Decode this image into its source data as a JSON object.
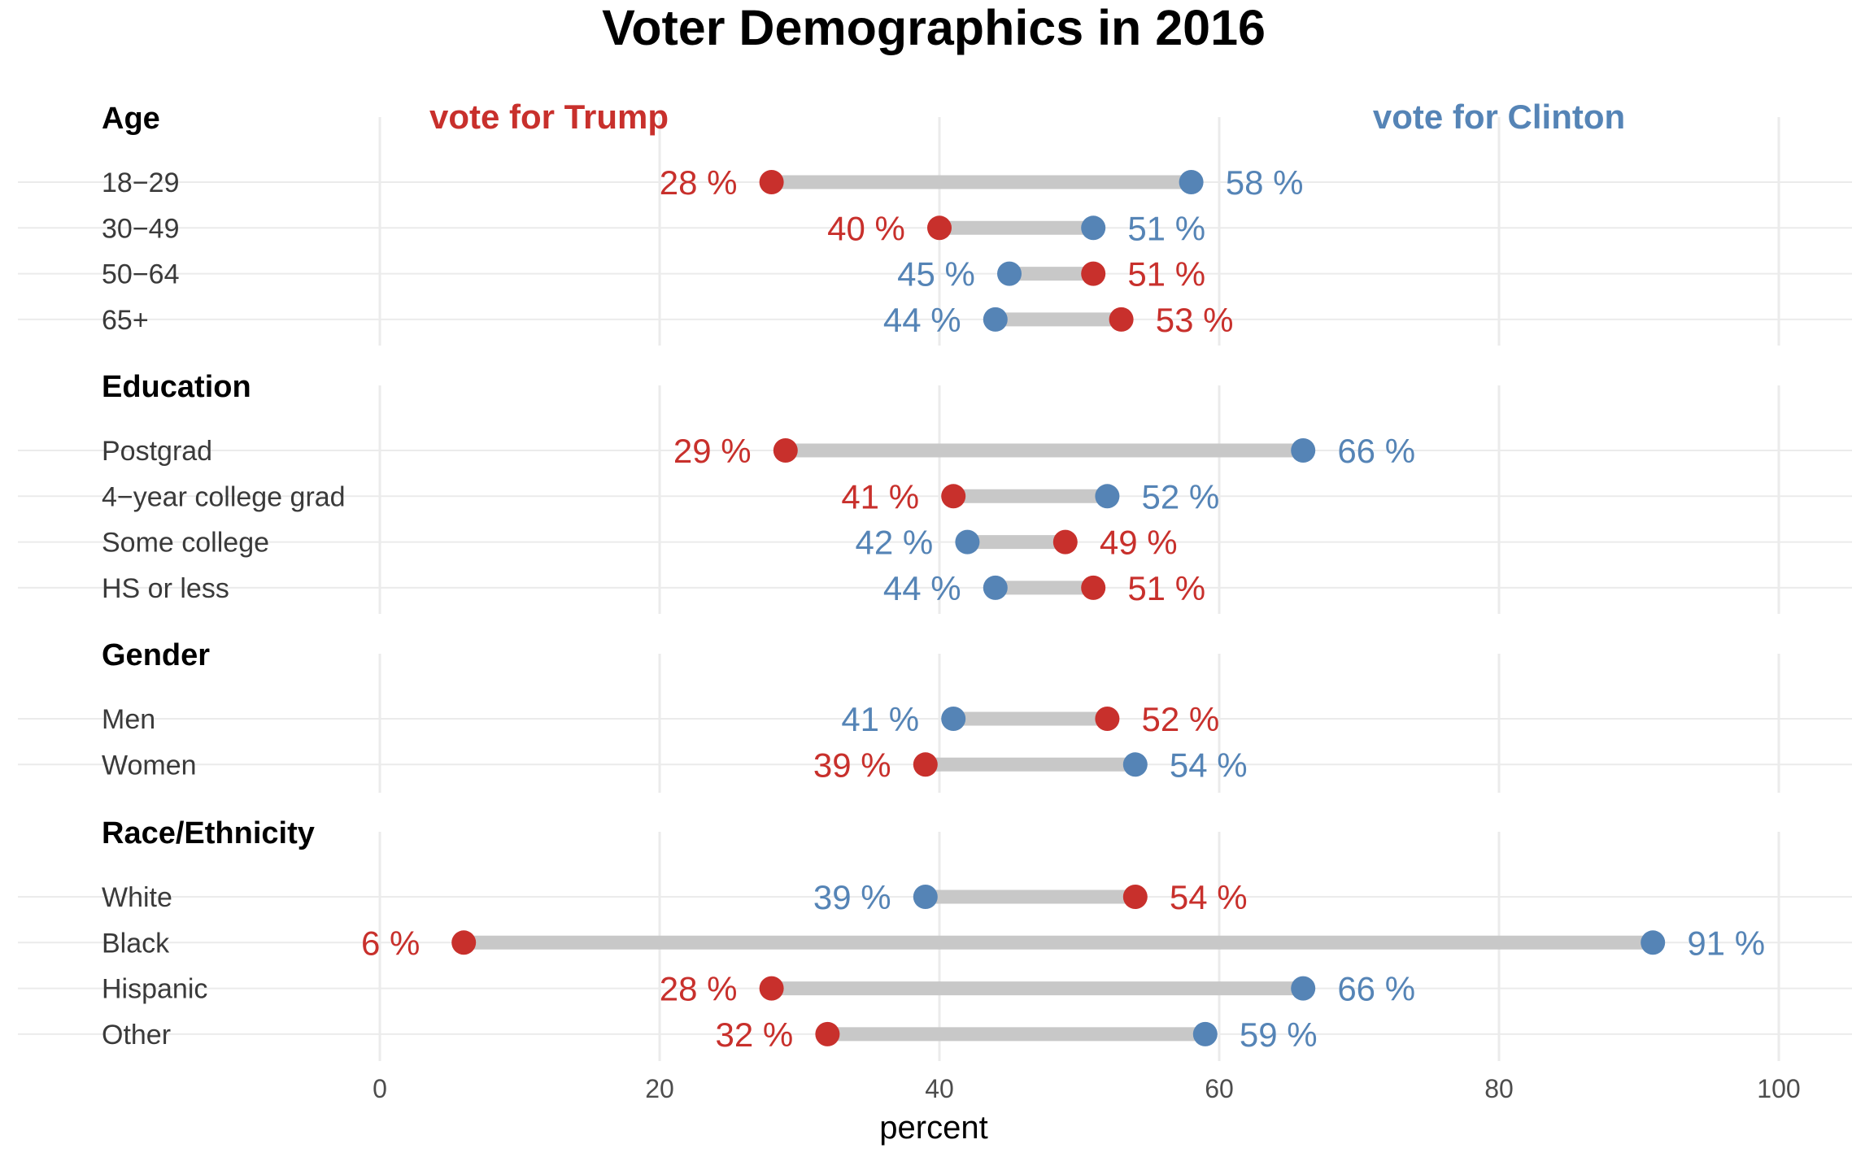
{
  "chart_data": {
    "type": "dumbbell",
    "title": "Voter Demographics in 2016",
    "xlabel": "percent",
    "xlim": [
      -13,
      106
    ],
    "x_ticks": [
      0,
      20,
      40,
      60,
      80,
      100
    ],
    "x_tick_labels": [
      "0",
      "20",
      "40",
      "60",
      "80",
      "100"
    ],
    "grid": true,
    "legend": {
      "trump_label": "vote for Trump",
      "clinton_label": "vote for Clinton"
    },
    "colors": {
      "trump": "#c8302c",
      "clinton": "#5584b6",
      "segment": "#c8c8c8",
      "grid": "#ebebeb"
    },
    "groups": [
      {
        "name": "Age",
        "rows": [
          {
            "label": "18−29",
            "trump": 28,
            "clinton": 58,
            "trump_label": "28 %",
            "clinton_label": "58 %"
          },
          {
            "label": "30−49",
            "trump": 40,
            "clinton": 51,
            "trump_label": "40 %",
            "clinton_label": "51 %"
          },
          {
            "label": "50−64",
            "trump": 51,
            "clinton": 45,
            "trump_label": "51 %",
            "clinton_label": "45 %"
          },
          {
            "label": "65+",
            "trump": 53,
            "clinton": 44,
            "trump_label": "53 %",
            "clinton_label": "44 %"
          }
        ]
      },
      {
        "name": "Education",
        "rows": [
          {
            "label": "Postgrad",
            "trump": 29,
            "clinton": 66,
            "trump_label": "29 %",
            "clinton_label": "66 %"
          },
          {
            "label": "4−year college grad",
            "trump": 41,
            "clinton": 52,
            "trump_label": "41 %",
            "clinton_label": "52 %"
          },
          {
            "label": "Some college",
            "trump": 49,
            "clinton": 42,
            "trump_label": "49 %",
            "clinton_label": "42 %"
          },
          {
            "label": "HS or less",
            "trump": 51,
            "clinton": 44,
            "trump_label": "51 %",
            "clinton_label": "44 %"
          }
        ]
      },
      {
        "name": "Gender",
        "rows": [
          {
            "label": "Men",
            "trump": 52,
            "clinton": 41,
            "trump_label": "52 %",
            "clinton_label": "41 %"
          },
          {
            "label": "Women",
            "trump": 39,
            "clinton": 54,
            "trump_label": "39 %",
            "clinton_label": "54 %"
          }
        ]
      },
      {
        "name": "Race/Ethnicity",
        "rows": [
          {
            "label": "White",
            "trump": 54,
            "clinton": 39,
            "trump_label": "54 %",
            "clinton_label": "39 %"
          },
          {
            "label": "Black",
            "trump": 6,
            "clinton": 91,
            "trump_label": "6 %",
            "clinton_label": "91 %"
          },
          {
            "label": "Hispanic",
            "trump": 28,
            "clinton": 66,
            "trump_label": "28 %",
            "clinton_label": "66 %"
          },
          {
            "label": "Other",
            "trump": 32,
            "clinton": 59,
            "trump_label": "32 %",
            "clinton_label": "59 %"
          }
        ]
      }
    ]
  }
}
